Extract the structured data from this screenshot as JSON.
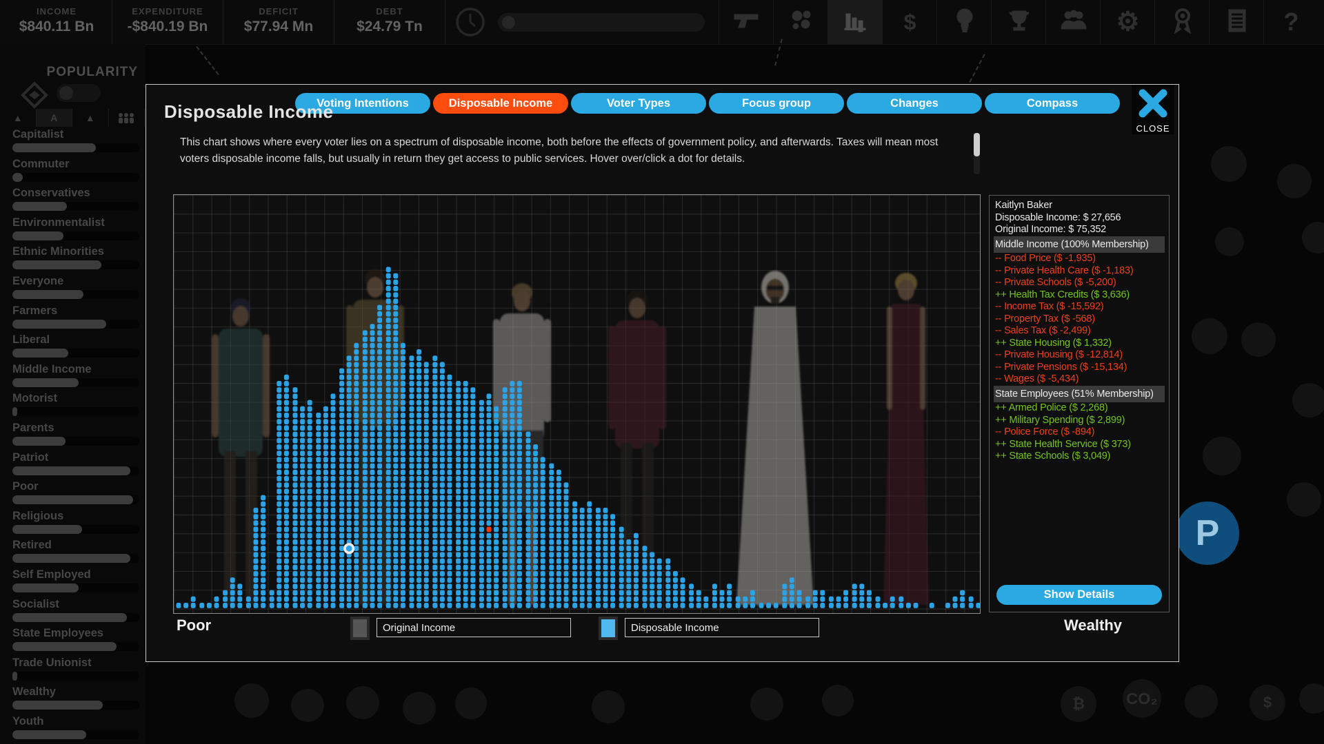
{
  "top_bar": {
    "stats": [
      {
        "label": "INCOME",
        "value": "$840.11 Bn"
      },
      {
        "label": "EXPENDITURE",
        "value": "-$840.19 Bn"
      },
      {
        "label": "DEFICIT",
        "value": "$77.94 Mn"
      },
      {
        "label": "DEBT",
        "value": "$24.79 Tn"
      }
    ],
    "icons": [
      "clock",
      "gun",
      "bubbles",
      "bar-chart",
      "dollar",
      "lightbulb",
      "trophy",
      "people",
      "gear",
      "medal",
      "report",
      "help"
    ],
    "selected_icon": "bar-chart"
  },
  "sidebar": {
    "title": "POPULARITY",
    "toolbar_icons": [
      "triangle-up",
      "alpha-sort",
      "triangle-up",
      "voters"
    ],
    "groups": [
      {
        "name": "Capitalist",
        "popularity": 0.66
      },
      {
        "name": "Commuter",
        "popularity": 0.08
      },
      {
        "name": "Conservatives",
        "popularity": 0.43
      },
      {
        "name": "Environmentalist",
        "popularity": 0.4
      },
      {
        "name": "Ethnic Minorities",
        "popularity": 0.7
      },
      {
        "name": "Everyone",
        "popularity": 0.56
      },
      {
        "name": "Farmers",
        "popularity": 0.74
      },
      {
        "name": "Liberal",
        "popularity": 0.44
      },
      {
        "name": "Middle Income",
        "popularity": 0.52
      },
      {
        "name": "Motorist",
        "popularity": 0.04
      },
      {
        "name": "Parents",
        "popularity": 0.42
      },
      {
        "name": "Patriot",
        "popularity": 0.93
      },
      {
        "name": "Poor",
        "popularity": 0.95
      },
      {
        "name": "Religious",
        "popularity": 0.55
      },
      {
        "name": "Retired",
        "popularity": 0.93
      },
      {
        "name": "Self Employed",
        "popularity": 0.52
      },
      {
        "name": "Socialist",
        "popularity": 0.9
      },
      {
        "name": "State Employees",
        "popularity": 0.82
      },
      {
        "name": "Trade Unionist",
        "popularity": 0.04
      },
      {
        "name": "Wealthy",
        "popularity": 0.71
      },
      {
        "name": "Youth",
        "popularity": 0.58
      }
    ]
  },
  "modal": {
    "tabs": [
      {
        "label": "Voting Intentions",
        "active": false
      },
      {
        "label": "Disposable Income",
        "active": true
      },
      {
        "label": "Voter Types",
        "active": false
      },
      {
        "label": "Focus group",
        "active": false
      },
      {
        "label": "Changes",
        "active": false
      },
      {
        "label": "Compass",
        "active": false
      }
    ],
    "close_label": "CLOSE",
    "title": "Disposable Income",
    "description": "This chart shows where every voter lies on a spectrum of disposable income, both before the effects of government policy, and afterwards. Taxes will mean most voters disposable income falls, but usually in return they get access to public services. Hover over/click a dot for details.",
    "legend": {
      "left_label": "Poor",
      "right_label": "Wealthy",
      "items": [
        {
          "label": "Original Income",
          "swatch": "#565656"
        },
        {
          "label": "Disposable Income",
          "swatch": "#50b8ee"
        }
      ]
    },
    "details_panel": {
      "lines": [
        {
          "text": "Kaitlyn Baker",
          "type": "info"
        },
        {
          "text": "Disposable Income: $ 27,656",
          "type": "info"
        },
        {
          "text": "Original Income: $ 75,352",
          "type": "info"
        },
        {
          "text": "Middle Income (100% Membership)",
          "type": "header"
        },
        {
          "text": "-- Food Price ($ -1,935)",
          "type": "neg"
        },
        {
          "text": "-- Private Health Care ($ -1,183)",
          "type": "neg"
        },
        {
          "text": "-- Private Schools ($ -5,200)",
          "type": "neg"
        },
        {
          "text": "++ Health Tax Credits ($ 3,636)",
          "type": "pos"
        },
        {
          "text": "-- Income Tax ($ -15,592)",
          "type": "neg"
        },
        {
          "text": "-- Property Tax ($ -568)",
          "type": "neg"
        },
        {
          "text": "-- Sales Tax ($ -2,499)",
          "type": "neg"
        },
        {
          "text": "++ State Housing ($ 1,332)",
          "type": "pos"
        },
        {
          "text": "-- Private Housing ($ -12,814)",
          "type": "neg"
        },
        {
          "text": "-- Private Pensions ($ -15,134)",
          "type": "neg"
        },
        {
          "text": "-- Wages ($ -5,434)",
          "type": "neg"
        },
        {
          "text": "State Employees (51% Membership)",
          "type": "header"
        },
        {
          "text": "++ Armed Police ($ 2,268)",
          "type": "pos"
        },
        {
          "text": "++ Military Spending ($ 2,899)",
          "type": "pos"
        },
        {
          "text": "-- Police Force ($ -894)",
          "type": "neg"
        },
        {
          "text": "++ State Health Service ($ 373)",
          "type": "pos"
        },
        {
          "text": "++ State Schools ($ 3,049)",
          "type": "pos"
        }
      ],
      "show_details_label": "Show Details"
    }
  },
  "chart_data": {
    "type": "bar",
    "subtype": "dot-histogram",
    "title": "Disposable Income",
    "xlabel_left": "Poor",
    "xlabel_right": "Wealthy",
    "grid": true,
    "dot_color": "#2ba3e6",
    "series": [
      {
        "name": "Disposable Income",
        "color": "#2ba3e6"
      },
      {
        "name": "Original Income",
        "color": "#565656"
      }
    ],
    "dot_counts_per_column": [
      1,
      1,
      2,
      1,
      1,
      2,
      3,
      5,
      4,
      2,
      16,
      18,
      3,
      36,
      37,
      35,
      32,
      33,
      31,
      32,
      34,
      38,
      40,
      42,
      44,
      45,
      48,
      54,
      53,
      42,
      40,
      41,
      39,
      40,
      39,
      37,
      36,
      36,
      35,
      33,
      34,
      32,
      35,
      36,
      36,
      28,
      26,
      24,
      23,
      22,
      20,
      17,
      16,
      17,
      16,
      16,
      15,
      13,
      11,
      12,
      10,
      9,
      8,
      8,
      6,
      5,
      4,
      3,
      2,
      4,
      3,
      4,
      2,
      2,
      3,
      1,
      1,
      1,
      4,
      5,
      3,
      2,
      3,
      3,
      2,
      2,
      3,
      4,
      4,
      3,
      2,
      1,
      2,
      2,
      1,
      1,
      0,
      1,
      0,
      1,
      2,
      3,
      2,
      1
    ],
    "selected_point": {
      "column": 22,
      "row": 9,
      "voter": "Kaitlyn Baker",
      "marker": "white-ring"
    },
    "original_income_point": {
      "column": 40,
      "row": 12,
      "color": "#ff3800"
    }
  }
}
